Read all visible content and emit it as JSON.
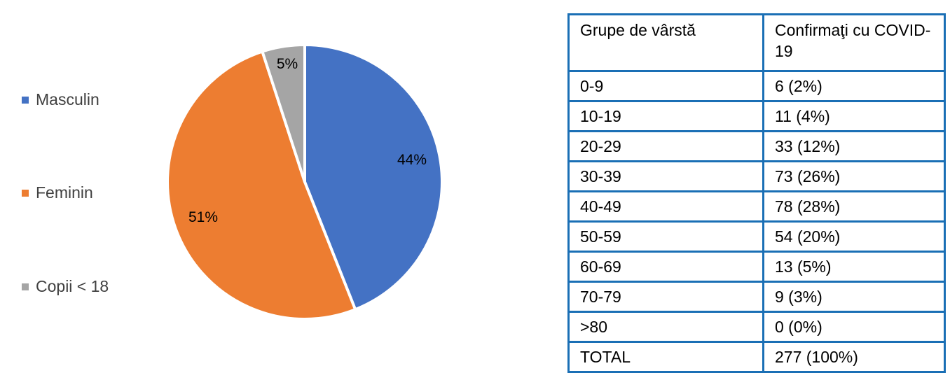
{
  "chart_data": [
    {
      "type": "pie",
      "legend_position": "left",
      "slices": [
        {
          "label": "Masculin",
          "value": 44,
          "value_label": "44%",
          "color": "#4472c4"
        },
        {
          "label": "Feminin",
          "value": 51,
          "value_label": "51%",
          "color": "#ed7d31"
        },
        {
          "label": "Copii < 18",
          "value": 5,
          "value_label": "5%",
          "color": "#a5a5a5"
        }
      ]
    },
    {
      "type": "table",
      "border_color": "#1a6fb5",
      "headers": [
        "Grupe de vârstă",
        "Confirmaţi cu COVID-19"
      ],
      "rows": [
        [
          "0-9",
          "6 (2%)"
        ],
        [
          "10-19",
          "11 (4%)"
        ],
        [
          "20-29",
          "33 (12%)"
        ],
        [
          "30-39",
          "73 (26%)"
        ],
        [
          "40-49",
          "78 (28%)"
        ],
        [
          "50-59",
          "54 (20%)"
        ],
        [
          "60-69",
          "13 (5%)"
        ],
        [
          "70-79",
          "9 (3%)"
        ],
        [
          ">80",
          "0 (0%)"
        ],
        [
          "TOTAL",
          "277 (100%)"
        ]
      ]
    }
  ]
}
